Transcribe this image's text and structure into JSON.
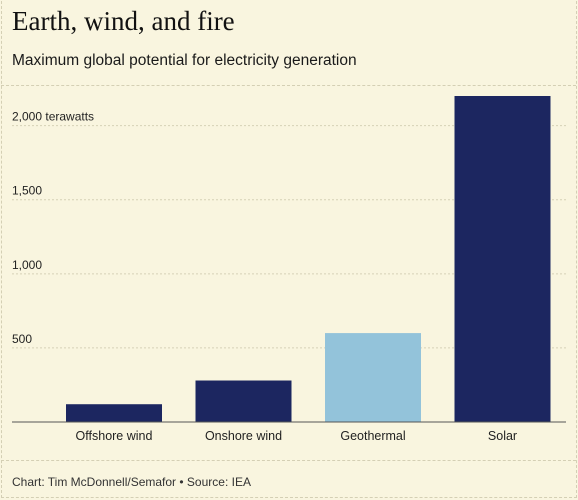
{
  "header": {
    "title": "Earth, wind, and fire",
    "subtitle": "Maximum global potential for electricity generation"
  },
  "footer": {
    "credit": "Chart: Tim McDonnell/Semafor • Source: IEA"
  },
  "colors": {
    "background": "#f9f5df",
    "dark_bar": "#1c2660",
    "light_bar": "#93c3da",
    "grid": "#d6d1b6",
    "axis": "#555555"
  },
  "chart_data": {
    "type": "bar",
    "categories": [
      "Offshore wind",
      "Onshore wind",
      "Geothermal",
      "Solar"
    ],
    "values": [
      120,
      280,
      600,
      2200
    ],
    "bar_colors": [
      "#1c2660",
      "#1c2660",
      "#93c3da",
      "#1c2660"
    ],
    "title": "Earth, wind, and fire",
    "subtitle": "Maximum global potential for electricity generation",
    "xlabel": "",
    "ylabel": "",
    "yticks": [
      {
        "value": 500,
        "label": "500"
      },
      {
        "value": 1000,
        "label": "1,000"
      },
      {
        "value": 1500,
        "label": "1,500"
      },
      {
        "value": 2000,
        "label": "2,000 terawatts"
      }
    ],
    "ylim": [
      0,
      2200
    ],
    "grid": true,
    "legend": "none"
  }
}
